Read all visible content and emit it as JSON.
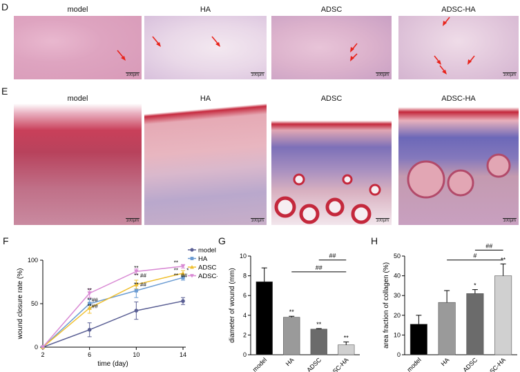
{
  "panel_d": {
    "label": "D",
    "titles": [
      "model",
      "HA",
      "ADSC",
      "ADSC-HA"
    ],
    "scale_bar": "100μm"
  },
  "panel_e": {
    "label": "E",
    "titles": [
      "model",
      "HA",
      "ADSC",
      "ADSC-HA"
    ],
    "scale_bar": "100μm"
  },
  "panel_f": {
    "label": "F"
  },
  "panel_g": {
    "label": "G"
  },
  "panel_h": {
    "label": "H"
  },
  "colors": {
    "model": "#5a5f94",
    "HA": "#6a9bd2",
    "ADSC": "#f0c030",
    "ADSC-HA": "#d98ad4",
    "bar_black": "#000000",
    "bar_gray1": "#9a9a9a",
    "bar_gray2": "#6b6b6b",
    "bar_gray3": "#d0d0d0"
  },
  "chart_data": [
    {
      "type": "line",
      "xlabel": "time (day)",
      "ylabel": "wound closure rate (%)",
      "x": [
        2,
        6,
        10,
        14
      ],
      "xticks": [
        "2",
        "6",
        "10",
        "14"
      ],
      "ylim": [
        0,
        100
      ],
      "yticks": [
        "0",
        "50",
        "100"
      ],
      "legend_position": "top-right",
      "series": [
        {
          "name": "model",
          "values": [
            0,
            20,
            42,
            53
          ],
          "errors": [
            0,
            8,
            10,
            4
          ]
        },
        {
          "name": "HA",
          "values": [
            0,
            50,
            65,
            80
          ],
          "errors": [
            0,
            5,
            8,
            3
          ]
        },
        {
          "name": "ADSC",
          "values": [
            0,
            45,
            72,
            85
          ],
          "errors": [
            0,
            6,
            5,
            3
          ]
        },
        {
          "name": "ADSC-HA",
          "values": [
            0,
            62,
            87,
            93
          ],
          "errors": [
            0,
            5,
            3,
            2
          ]
        }
      ],
      "annotations": [
        {
          "text": "**",
          "x": 6,
          "y": 63
        },
        {
          "text": "**",
          "x": 6,
          "y": 52
        },
        {
          "text": "##",
          "x": 6.45,
          "y": 52
        },
        {
          "text": "**",
          "x": 6,
          "y": 45
        },
        {
          "text": "##",
          "x": 6.45,
          "y": 45
        },
        {
          "text": "**",
          "x": 10,
          "y": 89
        },
        {
          "text": "**",
          "x": 10,
          "y": 80
        },
        {
          "text": "##",
          "x": 10.6,
          "y": 80
        },
        {
          "text": "**",
          "x": 10,
          "y": 70
        },
        {
          "text": "##",
          "x": 10.6,
          "y": 70
        },
        {
          "text": "**",
          "x": 13.4,
          "y": 95
        },
        {
          "text": "**",
          "x": 13.4,
          "y": 86
        },
        {
          "text": "*",
          "x": 14.4,
          "y": 86
        },
        {
          "text": "**",
          "x": 13.4,
          "y": 80
        },
        {
          "text": "##",
          "x": 14.1,
          "y": 80
        }
      ]
    },
    {
      "type": "bar",
      "ylabel": "diameter of wound (mm)",
      "categories": [
        "model",
        "HA",
        "ADSC",
        "ADSC-HA"
      ],
      "values": [
        7.4,
        3.8,
        2.6,
        1.0
      ],
      "errors": [
        1.4,
        0.1,
        0.05,
        0.3
      ],
      "ylim": [
        0,
        10
      ],
      "yticks": [
        "0",
        "2",
        "4",
        "6",
        "8",
        "10"
      ],
      "star_labels": [
        "",
        "**",
        "**",
        "**"
      ],
      "brackets": [
        {
          "from": 1,
          "to": 3,
          "label": "##",
          "y": 8.4
        },
        {
          "from": 2,
          "to": 3,
          "label": "##",
          "y": 9.6
        }
      ]
    },
    {
      "type": "bar",
      "ylabel": "area fraction of collagen (%)",
      "categories": [
        "model",
        "HA",
        "ADSC",
        "ADSC-HA"
      ],
      "values": [
        15.5,
        26.5,
        31,
        40
      ],
      "errors": [
        4.5,
        6,
        2,
        6
      ],
      "ylim": [
        0,
        50
      ],
      "yticks": [
        "0",
        "10",
        "20",
        "30",
        "40",
        "50"
      ],
      "star_labels": [
        "",
        "",
        "*",
        "**"
      ],
      "brackets": [
        {
          "from": 1,
          "to": 3,
          "label": "#",
          "y": 48
        },
        {
          "from": 2,
          "to": 3,
          "label": "##",
          "y": 53
        }
      ]
    }
  ]
}
